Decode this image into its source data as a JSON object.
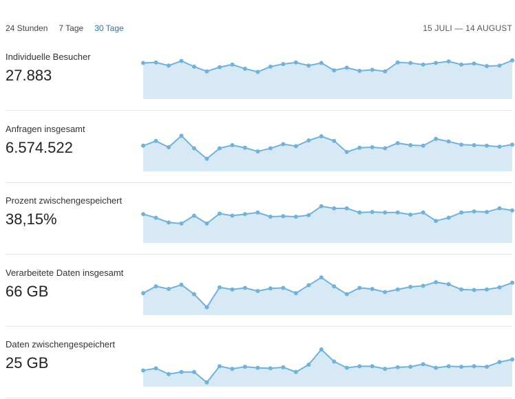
{
  "tabs": [
    {
      "label": "24 Stunden",
      "active": false
    },
    {
      "label": "7 Tage",
      "active": false
    },
    {
      "label": "30 Tage",
      "active": true
    }
  ],
  "date_range": "15 JULI — 14 AUGUST",
  "colors": {
    "accent": "#2d74a8",
    "line": "#6fb2dc",
    "fill": "#d6e9f5"
  },
  "metrics": [
    {
      "label": "Individuelle Besucher",
      "value": "27.883"
    },
    {
      "label": "Anfragen insgesamt",
      "value": "6.574.522"
    },
    {
      "label": "Prozent zwischengespeichert",
      "value": "38,15%"
    },
    {
      "label": "Verarbeitete Daten insgesamt",
      "value": "66 GB"
    },
    {
      "label": "Daten zwischengespeichert",
      "value": "25 GB"
    }
  ],
  "chart_data": [
    {
      "type": "area",
      "title": "Individuelle Besucher",
      "ylim": [
        0,
        100
      ],
      "values": [
        69,
        70,
        64,
        73,
        62,
        53,
        61,
        66,
        58,
        52,
        62,
        67,
        70,
        64,
        69,
        55,
        60,
        54,
        56,
        53,
        70,
        69,
        66,
        69,
        72,
        66,
        68,
        63,
        64,
        74
      ]
    },
    {
      "type": "area",
      "title": "Anfragen insgesamt",
      "ylim": [
        0,
        100
      ],
      "values": [
        49,
        58,
        46,
        68,
        44,
        24,
        44,
        50,
        45,
        38,
        44,
        52,
        48,
        59,
        67,
        58,
        37,
        45,
        46,
        44,
        54,
        50,
        49,
        62,
        57,
        51,
        50,
        49,
        47,
        51
      ]
    },
    {
      "type": "area",
      "title": "Prozent zwischengespeichert",
      "ylim": [
        0,
        100
      ],
      "values": [
        55,
        48,
        39,
        37,
        52,
        37,
        56,
        52,
        55,
        58,
        50,
        51,
        50,
        53,
        70,
        66,
        66,
        58,
        59,
        58,
        58,
        54,
        58,
        42,
        48,
        58,
        60,
        59,
        66,
        62
      ]
    },
    {
      "type": "area",
      "title": "Verarbeitete Daten insgesamt",
      "ylim": [
        0,
        100
      ],
      "values": [
        42,
        55,
        50,
        58,
        40,
        15,
        53,
        49,
        52,
        46,
        51,
        52,
        42,
        57,
        72,
        55,
        40,
        52,
        50,
        44,
        49,
        54,
        56,
        63,
        59,
        49,
        48,
        49,
        53,
        62
      ]
    },
    {
      "type": "area",
      "title": "Daten zwischengespeichert",
      "ylim": [
        0,
        100
      ],
      "values": [
        31,
        35,
        24,
        28,
        28,
        8,
        39,
        34,
        38,
        36,
        35,
        37,
        28,
        42,
        71,
        48,
        36,
        39,
        39,
        34,
        37,
        38,
        43,
        36,
        39,
        38,
        39,
        38,
        47,
        52
      ]
    }
  ]
}
